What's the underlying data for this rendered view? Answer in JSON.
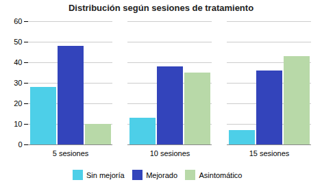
{
  "chart_data": {
    "type": "bar",
    "title": "Distribución según sesiones de tratamiento",
    "categories": [
      "5 sesiones",
      "10 sesiones",
      "15 sesiones"
    ],
    "series": [
      {
        "name": "Sin mejoría",
        "color": "#4DCFE8",
        "values": [
          28,
          13,
          7
        ]
      },
      {
        "name": "Mejorado",
        "color": "#3344BB",
        "values": [
          48,
          38,
          36
        ]
      },
      {
        "name": "Asintomático",
        "color": "#B8D9A8",
        "values": [
          10,
          35,
          43
        ]
      }
    ],
    "ylim": [
      0,
      60
    ],
    "yticks": [
      0,
      10,
      20,
      30,
      40,
      50,
      60
    ],
    "grid": true,
    "legend": "bottom"
  }
}
